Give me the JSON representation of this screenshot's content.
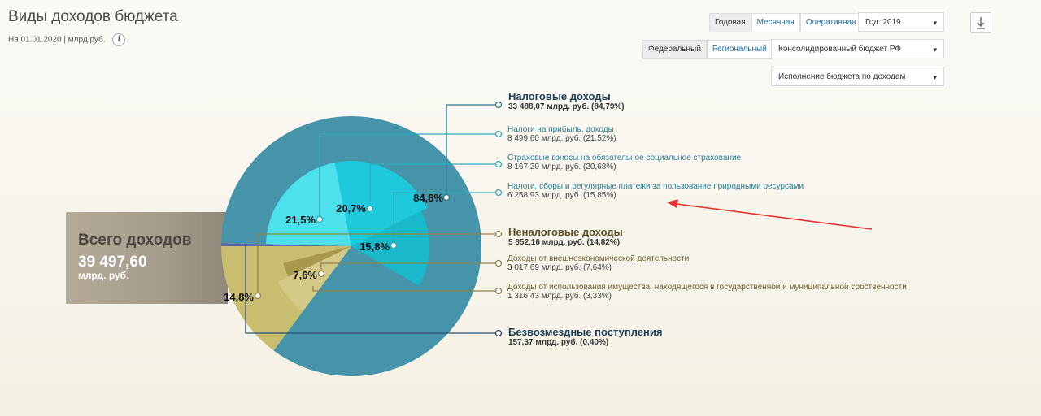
{
  "header": {
    "title": "Виды доходов бюджета",
    "date": "На 01.01.2020",
    "separator": "|",
    "unit": "млрд.руб.",
    "info_glyph": "i"
  },
  "controls": {
    "period_buttons": [
      "Годовая",
      "Месячная",
      "Оперативная"
    ],
    "year_select": "Год: 2019",
    "level_buttons": [
      "Федеральный",
      "Региональный"
    ],
    "budget_select": "Консолидированный бюджет РФ",
    "view_select": "Исполнение бюджета по доходам",
    "caret": "▾",
    "download_icon": "download-icon"
  },
  "total": {
    "title": "Всего доходов",
    "value": "39 497,60",
    "unit": "млрд. руб."
  },
  "colors": {
    "tax": "#4594a9",
    "tax_profit": "#4de1ee",
    "tax_insurance": "#1ec9dc",
    "tax_resources": "#19b8cb",
    "nontax": "#c9bd70",
    "nontax_foreign": "#d5c987",
    "nontax_property": "#a7984e",
    "free": "#5a6cae",
    "line_tax": "#2c7a91",
    "line_sub": "#31a9bc",
    "line_nontax": "#8e8348",
    "line_free": "#2e4a73",
    "arrow": "#e83232"
  },
  "chart_data": {
    "type": "pie",
    "title": "Виды доходов бюджета",
    "unit": "млрд. руб.",
    "total": 39497.6,
    "segments": [
      {
        "key": "tax",
        "name": "Налоговые доходы",
        "value": 33488.07,
        "percent": 84.79,
        "pie_label": "84,8%",
        "value_text": "33 488,07 млрд. руб. (84,79%)"
      },
      {
        "key": "nontax",
        "name": "Неналоговые доходы",
        "value": 5852.16,
        "percent": 14.82,
        "pie_label": "14,8%",
        "value_text": "5 852,16 млрд. руб. (14,82%)"
      },
      {
        "key": "free",
        "name": "Безвозмездные поступления",
        "value": 157.37,
        "percent": 0.4,
        "pie_label": "",
        "value_text": "157,37 млрд. руб. (0,40%)"
      }
    ],
    "subsegments": [
      {
        "parent": "tax",
        "key": "tax_profit",
        "name": "Налоги на прибыль, доходы",
        "value": 8499.6,
        "percent": 21.52,
        "pie_label": "21,5%",
        "value_text": "8 499,60 млрд. руб. (21,52%)"
      },
      {
        "parent": "tax",
        "key": "tax_insurance",
        "name": "Страховые взносы на обязательное социальное страхование",
        "value": 8167.2,
        "percent": 20.68,
        "pie_label": "20,7%",
        "value_text": "8 167,20 млрд. руб. (20,68%)"
      },
      {
        "parent": "tax",
        "key": "tax_resources",
        "name": "Налоги, сборы и регулярные платежи за пользование природными ресурсами",
        "value": 6258.93,
        "percent": 15.85,
        "pie_label": "15,8%",
        "value_text": "6 258,93 млрд. руб. (15,85%)"
      },
      {
        "parent": "nontax",
        "key": "nontax_foreign",
        "name": "Доходы от внешнеэкономической деятельности",
        "value": 3017.69,
        "percent": 7.64,
        "pie_label": "7,6%",
        "value_text": "3 017,69 млрд. руб. (7,64%)"
      },
      {
        "parent": "nontax",
        "key": "nontax_property",
        "name": "Доходы от использования имущества, находящегося в государственной и муниципальной собственности",
        "value": 1316.43,
        "percent": 3.33,
        "pie_label": "",
        "value_text": "1 316,43 млрд. руб. (3,33%)"
      }
    ]
  }
}
